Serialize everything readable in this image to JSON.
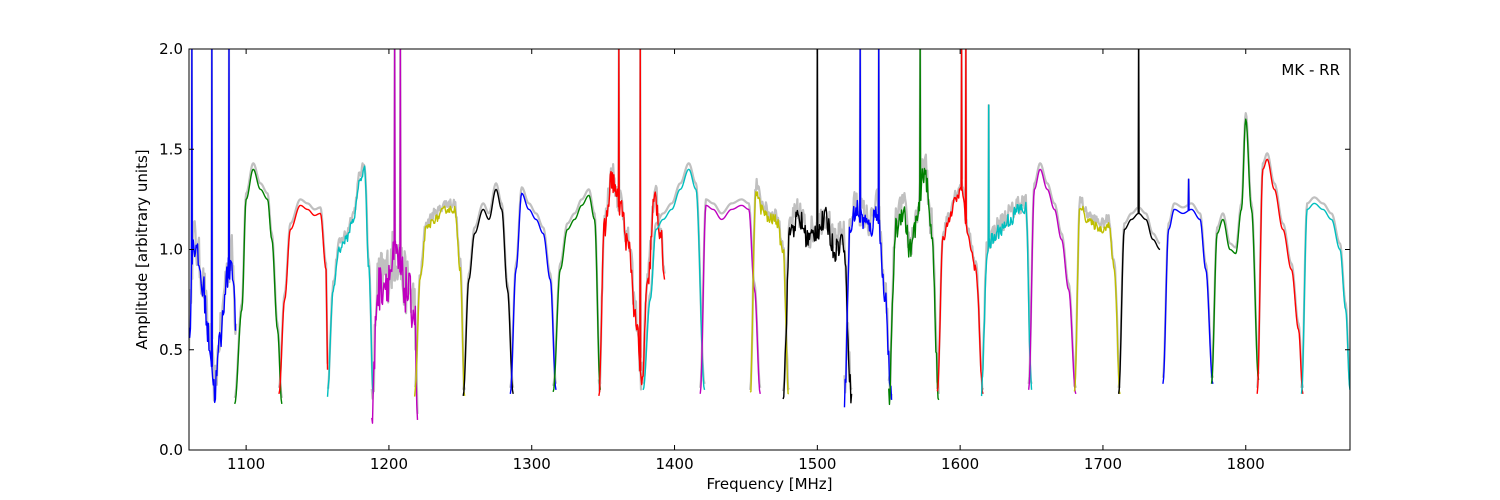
{
  "chart_data": {
    "type": "line",
    "title": "",
    "annotation": "MK - RR",
    "xlabel": "Frequency [MHz]",
    "ylabel": "Amplitude [arbitrary units]",
    "xlim": [
      1060,
      1873
    ],
    "ylim": [
      0.0,
      2.0
    ],
    "grid": false,
    "x_ticks": [
      1100,
      1200,
      1300,
      1400,
      1500,
      1600,
      1700,
      1800
    ],
    "x_tick_labels": [
      "1100",
      "1200",
      "1300",
      "1400",
      "1500",
      "1600",
      "1700",
      "1800"
    ],
    "y_ticks": [
      0.0,
      0.5,
      1.0,
      1.5,
      2.0
    ],
    "y_tick_labels": [
      "0.0",
      "0.5",
      "1.0",
      "1.5",
      "2.0"
    ],
    "background_trace_color": "#c0c0c0",
    "series": [
      {
        "color": "#0000ff",
        "x": [
          1060,
          1063,
          1066,
          1070,
          1074,
          1078,
          1082,
          1086,
          1090,
          1093
        ],
        "y": [
          0.55,
          1.05,
          0.95,
          0.8,
          0.55,
          0.3,
          0.55,
          0.85,
          0.95,
          0.6
        ],
        "noise": 0.08,
        "spikes": [
          [
            1062,
            2.0
          ],
          [
            1076,
            2.0
          ],
          [
            1088,
            2.0
          ]
        ]
      },
      {
        "color": "#008000",
        "x": [
          1092,
          1097,
          1100,
          1105,
          1110,
          1115,
          1118,
          1122,
          1125
        ],
        "y": [
          0.23,
          0.7,
          1.25,
          1.4,
          1.3,
          1.25,
          1.05,
          0.6,
          0.23
        ],
        "noise": 0
      },
      {
        "color": "#ff0000",
        "x": [
          1123,
          1127,
          1131,
          1138,
          1143,
          1148,
          1152,
          1156,
          1157
        ],
        "y": [
          0.28,
          0.75,
          1.1,
          1.22,
          1.2,
          1.17,
          1.18,
          0.9,
          0.4
        ],
        "noise": 0
      },
      {
        "color": "#00bfbf",
        "x": [
          1157,
          1161,
          1165,
          1170,
          1175,
          1180,
          1183,
          1186,
          1189
        ],
        "y": [
          0.28,
          0.8,
          1.0,
          1.05,
          1.15,
          1.35,
          1.4,
          0.9,
          0.28
        ],
        "noise": 0.02
      },
      {
        "color": "#bf00bf",
        "x": [
          1188,
          1192,
          1198,
          1205,
          1212,
          1218,
          1220
        ],
        "y": [
          0.15,
          0.8,
          0.85,
          0.95,
          0.8,
          0.7,
          0.15
        ],
        "noise": 0.12,
        "spikes": [
          [
            1204,
            2.0
          ],
          [
            1208,
            2.0
          ]
        ]
      },
      {
        "color": "#bfbf00",
        "x": [
          1218,
          1222,
          1226,
          1232,
          1240,
          1246,
          1250,
          1253
        ],
        "y": [
          0.27,
          0.85,
          1.1,
          1.15,
          1.2,
          1.2,
          0.9,
          0.27
        ],
        "noise": 0.02
      },
      {
        "color": "#000000",
        "x": [
          1252,
          1256,
          1260,
          1266,
          1270,
          1275,
          1279,
          1283,
          1287
        ],
        "y": [
          0.27,
          0.85,
          1.08,
          1.2,
          1.15,
          1.3,
          1.2,
          0.8,
          0.28
        ],
        "noise": 0
      },
      {
        "color": "#0000ff",
        "x": [
          1285,
          1289,
          1293,
          1298,
          1303,
          1308,
          1313,
          1317
        ],
        "y": [
          0.28,
          0.9,
          1.28,
          1.2,
          1.15,
          1.08,
          0.85,
          0.3
        ],
        "noise": 0
      },
      {
        "color": "#008000",
        "x": [
          1315,
          1320,
          1325,
          1330,
          1335,
          1340,
          1344,
          1348
        ],
        "y": [
          0.29,
          0.9,
          1.1,
          1.15,
          1.22,
          1.27,
          1.15,
          0.3
        ],
        "noise": 0
      },
      {
        "color": "#ff0000",
        "x": [
          1347,
          1351,
          1356,
          1362,
          1368,
          1373,
          1377,
          1381,
          1386,
          1390,
          1393
        ],
        "y": [
          0.3,
          1.1,
          1.35,
          1.22,
          1.0,
          0.65,
          0.32,
          0.8,
          1.25,
          1.1,
          0.85
        ],
        "noise": 0.06,
        "spikes": [
          [
            1361,
            2.0
          ],
          [
            1376,
            2.0
          ]
        ]
      },
      {
        "color": "#00bfbf",
        "x": [
          1378,
          1383,
          1387,
          1392,
          1398,
          1404,
          1410,
          1415,
          1421
        ],
        "y": [
          0.3,
          0.75,
          1.1,
          1.15,
          1.2,
          1.3,
          1.4,
          1.3,
          0.3
        ],
        "noise": 0
      },
      {
        "color": "#bf00bf",
        "x": [
          1418,
          1422,
          1427,
          1433,
          1440,
          1447,
          1452,
          1456,
          1460
        ],
        "y": [
          0.28,
          1.22,
          1.2,
          1.15,
          1.2,
          1.22,
          1.2,
          0.8,
          0.28
        ],
        "noise": 0
      },
      {
        "color": "#bfbf00",
        "x": [
          1453,
          1457,
          1461,
          1466,
          1471,
          1476,
          1480
        ],
        "y": [
          0.28,
          1.3,
          1.2,
          1.15,
          1.15,
          1.0,
          0.28
        ],
        "noise": 0.03
      },
      {
        "color": "#000000",
        "x": [
          1476,
          1481,
          1487,
          1494,
          1500,
          1506,
          1512,
          1518,
          1524
        ],
        "y": [
          0.28,
          1.1,
          1.15,
          1.05,
          1.1,
          1.15,
          1.0,
          1.05,
          0.28
        ],
        "noise": 0.06,
        "spikes": [
          [
            1500,
            2.0
          ]
        ]
      },
      {
        "color": "#0000ff",
        "x": [
          1519,
          1523,
          1527,
          1532,
          1537,
          1542,
          1547,
          1552
        ],
        "y": [
          0.27,
          1.1,
          1.2,
          1.15,
          1.1,
          1.2,
          0.8,
          0.25
        ],
        "noise": 0.06,
        "spikes": [
          [
            1530,
            2.0
          ],
          [
            1543,
            2.0
          ]
        ]
      },
      {
        "color": "#008000",
        "x": [
          1550,
          1555,
          1560,
          1565,
          1570,
          1575,
          1580,
          1585
        ],
        "y": [
          0.25,
          1.1,
          1.2,
          1.0,
          1.15,
          1.4,
          1.1,
          0.25
        ],
        "noise": 0.06,
        "spikes": [
          [
            1572,
            2.0
          ]
        ]
      },
      {
        "color": "#ff0000",
        "x": [
          1584,
          1588,
          1592,
          1597,
          1601,
          1606,
          1611,
          1616
        ],
        "y": [
          0.28,
          1.05,
          1.15,
          1.25,
          1.3,
          1.05,
          0.9,
          0.28
        ],
        "noise": 0.02,
        "spikes": [
          [
            1601,
            2.0
          ],
          [
            1604,
            2.0
          ]
        ]
      },
      {
        "color": "#00bfbf",
        "x": [
          1615,
          1619,
          1623,
          1628,
          1635,
          1641,
          1646,
          1650
        ],
        "y": [
          0.3,
          1.0,
          1.05,
          1.1,
          1.15,
          1.2,
          1.2,
          0.3
        ],
        "noise": 0.04,
        "spikes": [
          [
            1620,
            1.72
          ]
        ]
      },
      {
        "color": "#bf00bf",
        "x": [
          1648,
          1652,
          1656,
          1661,
          1666,
          1671,
          1676,
          1681
        ],
        "y": [
          0.3,
          1.3,
          1.4,
          1.3,
          1.2,
          1.05,
          0.8,
          0.28
        ],
        "noise": 0
      },
      {
        "color": "#bfbf00",
        "x": [
          1680,
          1684,
          1689,
          1694,
          1699,
          1704,
          1708,
          1712
        ],
        "y": [
          0.28,
          1.22,
          1.15,
          1.12,
          1.1,
          1.12,
          0.9,
          0.28
        ],
        "noise": 0.02
      },
      {
        "color": "#000000",
        "x": [
          1711,
          1715,
          1720,
          1725,
          1730,
          1735,
          1740
        ],
        "y": [
          0.28,
          1.1,
          1.15,
          1.18,
          1.15,
          1.05,
          1.0
        ],
        "noise": 0,
        "spikes": [
          [
            1725,
            2.0
          ]
        ]
      },
      {
        "color": "#0000ff",
        "x": [
          1742,
          1746,
          1750,
          1756,
          1762,
          1768,
          1772,
          1777
        ],
        "y": [
          0.33,
          1.1,
          1.2,
          1.18,
          1.2,
          1.15,
          0.9,
          0.33
        ],
        "noise": 0,
        "spikes": [
          [
            1760,
            1.35
          ]
        ]
      },
      {
        "color": "#008000",
        "x": [
          1776,
          1780,
          1784,
          1789,
          1793,
          1797,
          1800,
          1804,
          1809
        ],
        "y": [
          0.33,
          1.08,
          1.15,
          1.0,
          0.98,
          1.2,
          1.65,
          1.2,
          0.35
        ],
        "noise": 0
      },
      {
        "color": "#ff0000",
        "x": [
          1808,
          1812,
          1815,
          1820,
          1826,
          1832,
          1837,
          1840
        ],
        "y": [
          0.28,
          1.4,
          1.45,
          1.3,
          1.1,
          0.9,
          0.6,
          0.28
        ],
        "noise": 0
      },
      {
        "color": "#00bfbf",
        "x": [
          1839,
          1843,
          1848,
          1854,
          1860,
          1866,
          1870,
          1873
        ],
        "y": [
          0.28,
          1.2,
          1.23,
          1.2,
          1.15,
          1.0,
          0.7,
          0.3
        ],
        "noise": 0
      }
    ]
  }
}
